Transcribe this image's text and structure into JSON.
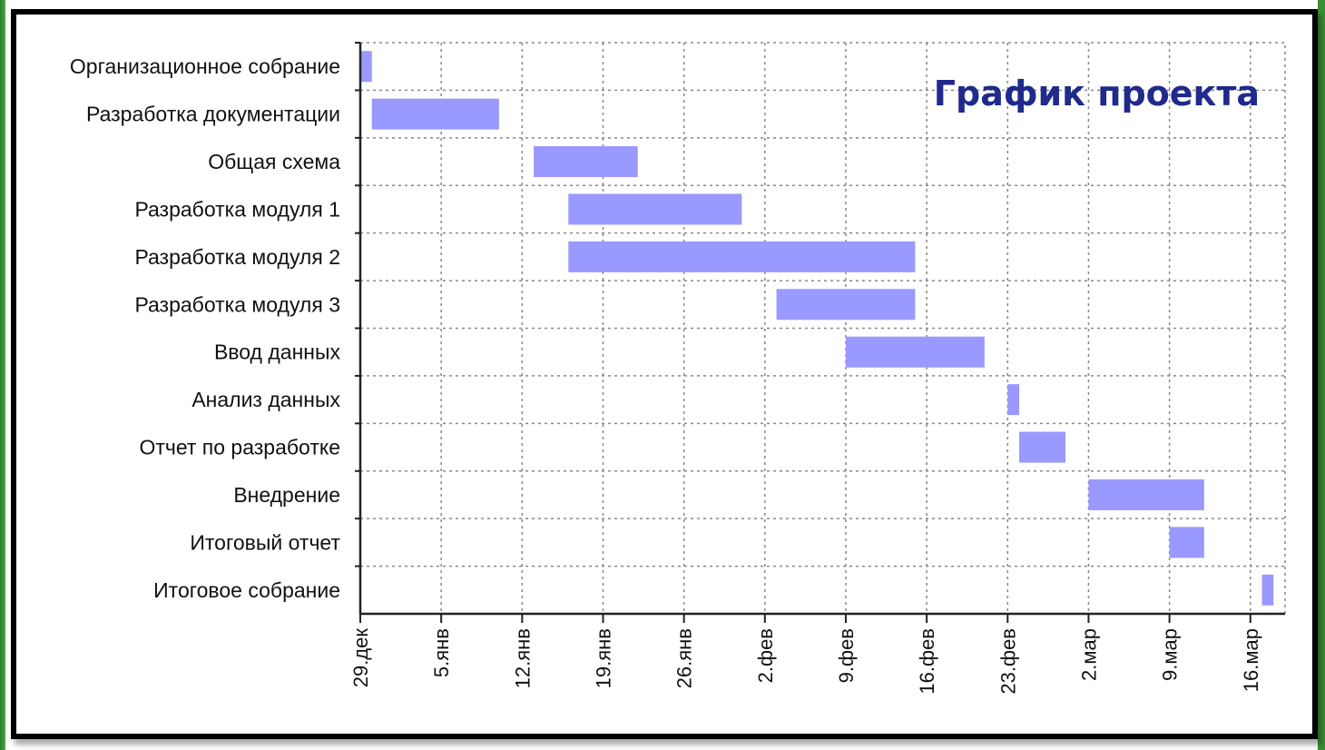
{
  "chart_data": {
    "type": "bar",
    "orientation": "horizontal",
    "title": "График проекта",
    "tasks": [
      {
        "name": "Организационное собрание",
        "start": "2009-12-29",
        "end": "2009-12-30"
      },
      {
        "name": "Разработка документации",
        "start": "2009-12-30",
        "end": "2010-01-10"
      },
      {
        "name": "Общая схема",
        "start": "2010-01-13",
        "end": "2010-01-22"
      },
      {
        "name": "Разработка модуля 1",
        "start": "2010-01-16",
        "end": "2010-01-31"
      },
      {
        "name": "Разработка модуля 2",
        "start": "2010-01-16",
        "end": "2010-02-15"
      },
      {
        "name": "Разработка модуля 3",
        "start": "2010-02-03",
        "end": "2010-02-15"
      },
      {
        "name": "Ввод данных",
        "start": "2010-02-09",
        "end": "2010-02-21"
      },
      {
        "name": "Анализ данных",
        "start": "2010-02-23",
        "end": "2010-02-24"
      },
      {
        "name": "Отчет по разработке",
        "start": "2010-02-24",
        "end": "2010-02-28"
      },
      {
        "name": "Внедрение",
        "start": "2010-03-02",
        "end": "2010-03-12"
      },
      {
        "name": "Итоговый отчет",
        "start": "2010-03-09",
        "end": "2010-03-12"
      },
      {
        "name": "Итоговое собрание",
        "start": "2010-03-17",
        "end": "2010-03-18"
      }
    ],
    "xticks": [
      {
        "date": "2009-12-29",
        "label": "29.дек"
      },
      {
        "date": "2010-01-05",
        "label": "5.янв"
      },
      {
        "date": "2010-01-12",
        "label": "12.янв"
      },
      {
        "date": "2010-01-19",
        "label": "19.янв"
      },
      {
        "date": "2010-01-26",
        "label": "26.янв"
      },
      {
        "date": "2010-02-02",
        "label": "2.фев"
      },
      {
        "date": "2010-02-09",
        "label": "9.фев"
      },
      {
        "date": "2010-02-16",
        "label": "16.фев"
      },
      {
        "date": "2010-02-23",
        "label": "23.фев"
      },
      {
        "date": "2010-03-02",
        "label": "2.мар"
      },
      {
        "date": "2010-03-09",
        "label": "9.мар"
      },
      {
        "date": "2010-03-16",
        "label": "16.мар"
      }
    ],
    "xlim": [
      "2009-12-29",
      "2010-03-19"
    ],
    "grid": true,
    "grid_style": "dotted",
    "legend": "none"
  },
  "colors": {
    "bar": "#9999ff",
    "title": "#1f2a8c",
    "grid": "#888888",
    "axis": "#222222"
  }
}
